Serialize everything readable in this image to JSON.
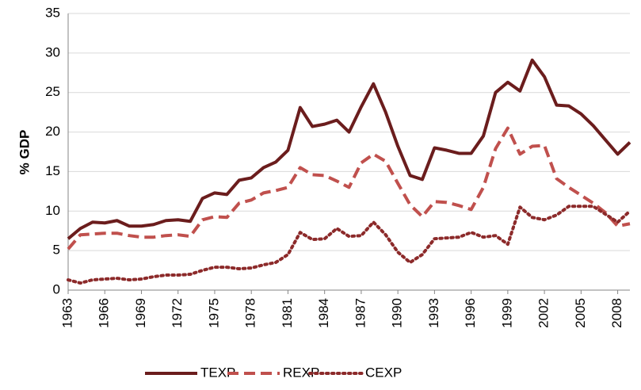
{
  "chart_data": {
    "type": "line",
    "y_label": "% GDP",
    "x": [
      1963,
      1964,
      1965,
      1966,
      1967,
      1968,
      1969,
      1970,
      1971,
      1972,
      1973,
      1974,
      1975,
      1976,
      1977,
      1978,
      1979,
      1980,
      1981,
      1982,
      1983,
      1984,
      1985,
      1986,
      1987,
      1988,
      1989,
      1990,
      1991,
      1992,
      1993,
      1994,
      1995,
      1996,
      1997,
      1998,
      1999,
      2000,
      2001,
      2002,
      2003,
      2004,
      2005,
      2006,
      2007,
      2008,
      2009
    ],
    "xlim": [
      1963,
      2009
    ],
    "xticks": [
      1963,
      1966,
      1969,
      1972,
      1975,
      1978,
      1981,
      1984,
      1987,
      1990,
      1993,
      1996,
      1999,
      2002,
      2005,
      2008
    ],
    "ylim": [
      0,
      35
    ],
    "yticks": [
      0,
      5,
      10,
      15,
      20,
      25,
      30,
      35
    ],
    "grid": true,
    "legend": "bottom",
    "series": [
      {
        "name": "TEXP",
        "color": "#6b1d1d",
        "dash": "solid",
        "values": [
          6.5,
          7.8,
          8.6,
          8.5,
          8.8,
          8.1,
          8.1,
          8.3,
          8.8,
          8.9,
          8.7,
          11.6,
          12.3,
          12.1,
          13.9,
          14.2,
          15.5,
          16.2,
          17.7,
          23.1,
          20.7,
          21.0,
          21.5,
          20.0,
          23.2,
          26.1,
          22.5,
          18.2,
          14.5,
          14.0,
          18.0,
          17.7,
          17.3,
          17.3,
          19.5,
          25.0,
          26.3,
          25.2,
          29.1,
          27.0,
          23.4,
          23.3,
          22.3,
          20.8,
          19.0,
          17.2,
          18.7
        ]
      },
      {
        "name": "REXP",
        "color": "#c0504d",
        "dash": "dashed",
        "values": [
          5.2,
          7.0,
          7.1,
          7.2,
          7.2,
          6.9,
          6.7,
          6.7,
          6.9,
          7.0,
          6.8,
          8.9,
          9.3,
          9.2,
          11.0,
          11.4,
          12.3,
          12.6,
          13.0,
          15.5,
          14.6,
          14.5,
          13.8,
          13.0,
          16.1,
          17.2,
          16.3,
          13.5,
          10.8,
          9.3,
          11.2,
          11.1,
          10.7,
          10.2,
          13.0,
          17.9,
          20.5,
          17.2,
          18.2,
          18.3,
          14.1,
          13.0,
          12.0,
          11.0,
          9.8,
          8.1,
          8.4
        ]
      },
      {
        "name": "CEXP",
        "color": "#8c2a2a",
        "dash": "dotted",
        "values": [
          1.3,
          0.9,
          1.3,
          1.4,
          1.5,
          1.3,
          1.4,
          1.7,
          1.9,
          1.9,
          2.0,
          2.5,
          2.9,
          2.9,
          2.7,
          2.8,
          3.2,
          3.5,
          4.5,
          7.3,
          6.4,
          6.5,
          7.8,
          6.8,
          6.9,
          8.6,
          7.0,
          4.8,
          3.5,
          4.5,
          6.5,
          6.6,
          6.7,
          7.3,
          6.7,
          6.9,
          5.8,
          10.5,
          9.2,
          8.9,
          9.5,
          10.6,
          10.6,
          10.6,
          9.6,
          8.6,
          10.0
        ]
      }
    ]
  }
}
